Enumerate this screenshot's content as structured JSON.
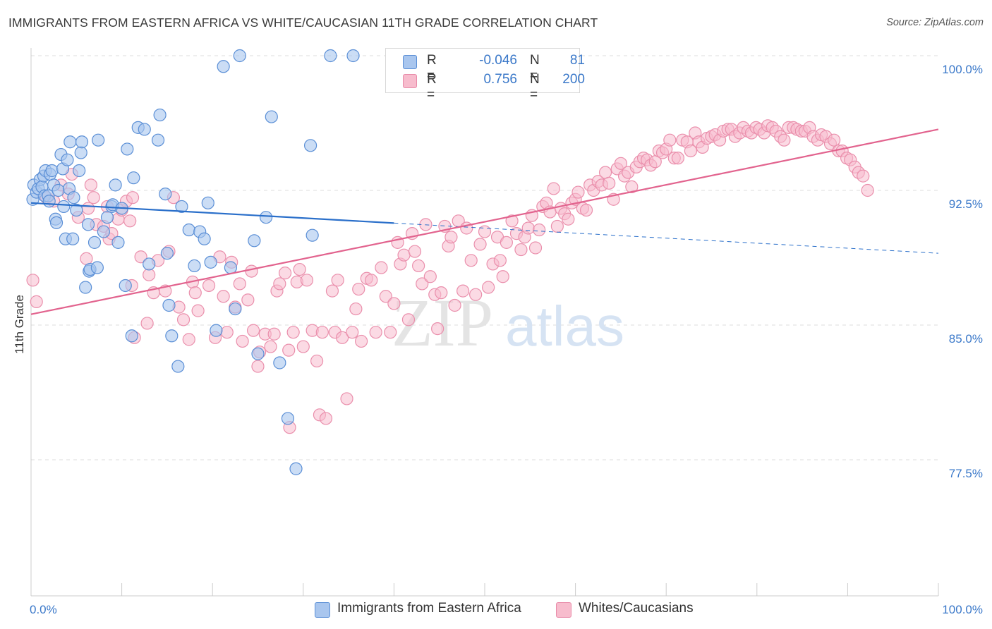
{
  "title": "IMMIGRANTS FROM EASTERN AFRICA VS WHITE/CAUCASIAN 11TH GRADE CORRELATION CHART",
  "source": "Source: ZipAtlas.com",
  "watermark": {
    "zip": "ZIP",
    "atlas": "atlas"
  },
  "legend": {
    "rows": [
      {
        "r_label": "R =",
        "r_value": "-0.046",
        "n_label": "N =",
        "n_value": "81",
        "color": "#a9c6ee",
        "border": "#5b8fd6"
      },
      {
        "r_label": "R =",
        "r_value": "0.756",
        "n_label": "N =",
        "n_value": "200",
        "color": "#f7bccd",
        "border": "#e88aa8"
      }
    ]
  },
  "bottom_legend": {
    "blue_label": "Immigrants from Eastern Africa",
    "pink_label": "Whites/Caucasians"
  },
  "colors": {
    "blue_fill": "#a9c6ee",
    "blue_stroke": "#5b8fd6",
    "blue_line": "#2a6fca",
    "pink_fill": "#f7bccd",
    "pink_stroke": "#ea8fac",
    "pink_line": "#e2638e",
    "tick_text": "#3a78c9",
    "grid": "#dddddd"
  },
  "chart_data": {
    "type": "scatter",
    "title": "IMMIGRANTS FROM EASTERN AFRICA VS WHITE/CAUCASIAN 11TH GRADE CORRELATION CHART",
    "xlabel": "",
    "ylabel": "11th Grade",
    "xlim": [
      0,
      100
    ],
    "ylim": [
      70.5,
      101.5
    ],
    "x_tick_labels": [
      "0.0%",
      "100.0%"
    ],
    "y_ticks": [
      77.5,
      85.0,
      92.5,
      100.0
    ],
    "y_tick_labels": [
      "77.5%",
      "85.0%",
      "92.5%",
      "100.0%"
    ],
    "grid": true,
    "legend_placement": "top-center",
    "series": [
      {
        "name": "Immigrants from Eastern Africa",
        "R": -0.046,
        "N": 81,
        "trend": {
          "x0": 0,
          "y0": 91.8,
          "x1": 100,
          "y1": 89.0,
          "solid_until": 40
        },
        "points": [
          [
            0.2,
            92.0
          ],
          [
            0.3,
            92.8
          ],
          [
            0.6,
            92.4
          ],
          [
            0.8,
            92.6
          ],
          [
            1.0,
            93.1
          ],
          [
            1.2,
            92.7
          ],
          [
            1.4,
            93.3
          ],
          [
            1.5,
            92.2
          ],
          [
            1.6,
            93.6
          ],
          [
            1.9,
            92.2
          ],
          [
            2.0,
            91.9
          ],
          [
            2.1,
            93.4
          ],
          [
            2.3,
            93.6
          ],
          [
            2.5,
            92.8
          ],
          [
            2.7,
            90.9
          ],
          [
            2.8,
            90.7
          ],
          [
            3.0,
            92.5
          ],
          [
            3.3,
            94.5
          ],
          [
            3.5,
            93.7
          ],
          [
            3.6,
            91.6
          ],
          [
            3.8,
            89.8
          ],
          [
            4.0,
            94.2
          ],
          [
            4.2,
            92.6
          ],
          [
            4.3,
            95.2
          ],
          [
            4.6,
            89.8
          ],
          [
            4.7,
            92.1
          ],
          [
            5.0,
            91.4
          ],
          [
            5.3,
            93.6
          ],
          [
            5.5,
            94.6
          ],
          [
            5.6,
            95.2
          ],
          [
            6.0,
            87.1
          ],
          [
            6.3,
            90.6
          ],
          [
            6.4,
            88.0
          ],
          [
            6.5,
            88.1
          ],
          [
            7.0,
            89.6
          ],
          [
            7.3,
            88.2
          ],
          [
            7.4,
            95.3
          ],
          [
            8.0,
            90.2
          ],
          [
            8.4,
            91.0
          ],
          [
            8.9,
            91.6
          ],
          [
            9.0,
            91.7
          ],
          [
            9.3,
            92.8
          ],
          [
            9.6,
            89.6
          ],
          [
            10.0,
            91.5
          ],
          [
            10.4,
            87.2
          ],
          [
            10.6,
            94.8
          ],
          [
            11.1,
            84.4
          ],
          [
            11.3,
            93.2
          ],
          [
            11.8,
            96.0
          ],
          [
            12.5,
            95.9
          ],
          [
            13.0,
            88.4
          ],
          [
            14.0,
            95.3
          ],
          [
            14.2,
            96.7
          ],
          [
            14.8,
            92.3
          ],
          [
            15.0,
            89.0
          ],
          [
            15.2,
            86.1
          ],
          [
            15.5,
            84.4
          ],
          [
            16.2,
            82.7
          ],
          [
            16.6,
            91.6
          ],
          [
            17.4,
            90.3
          ],
          [
            18.0,
            88.3
          ],
          [
            18.6,
            90.2
          ],
          [
            19.1,
            89.8
          ],
          [
            19.5,
            91.8
          ],
          [
            19.8,
            88.5
          ],
          [
            20.4,
            84.7
          ],
          [
            21.2,
            99.4
          ],
          [
            22.0,
            88.2
          ],
          [
            22.5,
            85.9
          ],
          [
            23.0,
            100.0
          ],
          [
            24.6,
            89.7
          ],
          [
            25.0,
            83.4
          ],
          [
            25.9,
            91.0
          ],
          [
            26.5,
            96.6
          ],
          [
            27.4,
            82.9
          ],
          [
            28.3,
            79.8
          ],
          [
            29.2,
            77.0
          ],
          [
            30.8,
            95.0
          ],
          [
            31.0,
            90.0
          ],
          [
            33.0,
            100.0
          ],
          [
            35.5,
            100.0
          ]
        ]
      },
      {
        "name": "Whites/Caucasians",
        "R": 0.756,
        "N": 200,
        "trend": {
          "x0": 0,
          "y0": 85.6,
          "x1": 100,
          "y1": 95.9
        },
        "points": [
          [
            0.2,
            87.5
          ],
          [
            0.6,
            86.3
          ],
          [
            1.7,
            92.1
          ],
          [
            2.5,
            91.9
          ],
          [
            3.3,
            92.8
          ],
          [
            4.1,
            92.3
          ],
          [
            4.5,
            93.4
          ],
          [
            5.2,
            91.0
          ],
          [
            6.1,
            88.7
          ],
          [
            6.3,
            91.5
          ],
          [
            6.6,
            92.8
          ],
          [
            6.9,
            92.1
          ],
          [
            7.2,
            90.6
          ],
          [
            8.0,
            90.5
          ],
          [
            8.4,
            91.6
          ],
          [
            8.6,
            89.8
          ],
          [
            8.9,
            90.1
          ],
          [
            9.6,
            90.9
          ],
          [
            10.0,
            91.4
          ],
          [
            10.5,
            91.9
          ],
          [
            10.9,
            90.8
          ],
          [
            11.1,
            87.2
          ],
          [
            11.2,
            92.1
          ],
          [
            11.4,
            84.3
          ],
          [
            12.1,
            88.8
          ],
          [
            12.8,
            85.1
          ],
          [
            13.0,
            87.8
          ],
          [
            13.5,
            86.8
          ],
          [
            14.0,
            88.6
          ],
          [
            14.8,
            86.9
          ],
          [
            15.2,
            89.1
          ],
          [
            15.7,
            92.1
          ],
          [
            16.3,
            86.0
          ],
          [
            16.8,
            85.3
          ],
          [
            17.4,
            84.2
          ],
          [
            17.8,
            87.4
          ],
          [
            18.1,
            86.8
          ],
          [
            18.4,
            85.8
          ],
          [
            19.6,
            87.2
          ],
          [
            20.3,
            84.3
          ],
          [
            20.8,
            88.8
          ],
          [
            21.2,
            86.6
          ],
          [
            21.6,
            84.6
          ],
          [
            22.1,
            88.5
          ],
          [
            22.5,
            86.0
          ],
          [
            23.0,
            87.3
          ],
          [
            23.3,
            84.1
          ],
          [
            23.9,
            86.4
          ],
          [
            24.3,
            88.0
          ],
          [
            24.5,
            84.7
          ],
          [
            25.0,
            82.7
          ],
          [
            25.2,
            83.5
          ],
          [
            25.8,
            84.5
          ],
          [
            26.4,
            83.8
          ],
          [
            26.8,
            84.5
          ],
          [
            27.1,
            86.9
          ],
          [
            27.4,
            87.3
          ],
          [
            28.0,
            87.9
          ],
          [
            28.4,
            83.6
          ],
          [
            28.5,
            79.3
          ],
          [
            28.9,
            84.6
          ],
          [
            29.3,
            87.4
          ],
          [
            29.6,
            88.1
          ],
          [
            30.0,
            83.8
          ],
          [
            30.4,
            87.5
          ],
          [
            31.0,
            84.7
          ],
          [
            31.5,
            83.0
          ],
          [
            31.8,
            80.0
          ],
          [
            32.1,
            84.6
          ],
          [
            32.5,
            79.8
          ],
          [
            33.2,
            86.9
          ],
          [
            33.5,
            84.6
          ],
          [
            33.8,
            87.5
          ],
          [
            34.3,
            84.3
          ],
          [
            34.8,
            80.9
          ],
          [
            35.4,
            84.6
          ],
          [
            35.8,
            85.9
          ],
          [
            36.1,
            87.0
          ],
          [
            36.4,
            84.1
          ],
          [
            37.0,
            87.6
          ],
          [
            37.5,
            87.5
          ],
          [
            38.0,
            84.6
          ],
          [
            38.6,
            88.2
          ],
          [
            39.1,
            86.6
          ],
          [
            39.6,
            84.6
          ],
          [
            40.0,
            86.2
          ],
          [
            40.4,
            89.6
          ],
          [
            40.7,
            88.4
          ],
          [
            41.1,
            88.9
          ],
          [
            41.6,
            85.3
          ],
          [
            42.0,
            90.1
          ],
          [
            42.3,
            89.1
          ],
          [
            42.7,
            88.3
          ],
          [
            43.1,
            87.3
          ],
          [
            43.5,
            90.6
          ],
          [
            44.0,
            87.7
          ],
          [
            44.5,
            86.7
          ],
          [
            44.8,
            84.8
          ],
          [
            45.2,
            86.8
          ],
          [
            45.6,
            90.5
          ],
          [
            46.0,
            89.4
          ],
          [
            46.3,
            89.9
          ],
          [
            46.7,
            86.1
          ],
          [
            47.1,
            90.8
          ],
          [
            47.6,
            86.9
          ],
          [
            48.0,
            90.4
          ],
          [
            48.5,
            88.6
          ],
          [
            49.0,
            86.7
          ],
          [
            49.5,
            89.5
          ],
          [
            50.0,
            90.2
          ],
          [
            50.4,
            87.1
          ],
          [
            50.9,
            88.4
          ],
          [
            51.4,
            89.9
          ],
          [
            51.7,
            88.6
          ],
          [
            52.0,
            87.7
          ],
          [
            52.4,
            89.6
          ],
          [
            53.0,
            90.8
          ],
          [
            53.5,
            90.1
          ],
          [
            54.0,
            89.2
          ],
          [
            54.4,
            89.9
          ],
          [
            54.8,
            90.4
          ],
          [
            55.2,
            91.1
          ],
          [
            55.6,
            89.3
          ],
          [
            56.0,
            90.3
          ],
          [
            56.4,
            91.6
          ],
          [
            56.8,
            91.8
          ],
          [
            57.2,
            91.3
          ],
          [
            57.6,
            92.6
          ],
          [
            58.0,
            90.5
          ],
          [
            58.4,
            91.5
          ],
          [
            58.8,
            91.2
          ],
          [
            59.2,
            90.9
          ],
          [
            59.6,
            91.8
          ],
          [
            60.0,
            92.0
          ],
          [
            60.3,
            92.4
          ],
          [
            60.8,
            91.5
          ],
          [
            61.2,
            91.4
          ],
          [
            61.6,
            92.8
          ],
          [
            62.0,
            92.5
          ],
          [
            62.5,
            93.0
          ],
          [
            62.9,
            92.8
          ],
          [
            63.3,
            93.5
          ],
          [
            63.7,
            92.9
          ],
          [
            64.2,
            92.0
          ],
          [
            64.6,
            93.7
          ],
          [
            65.0,
            94.0
          ],
          [
            65.4,
            93.3
          ],
          [
            65.8,
            93.5
          ],
          [
            66.2,
            92.7
          ],
          [
            66.7,
            93.8
          ],
          [
            67.1,
            94.1
          ],
          [
            67.5,
            94.3
          ],
          [
            67.9,
            94.2
          ],
          [
            68.3,
            93.9
          ],
          [
            68.8,
            94.1
          ],
          [
            69.2,
            94.7
          ],
          [
            69.6,
            94.6
          ],
          [
            70.0,
            94.8
          ],
          [
            70.4,
            95.3
          ],
          [
            70.9,
            94.3
          ],
          [
            71.3,
            94.3
          ],
          [
            71.8,
            95.3
          ],
          [
            72.3,
            95.2
          ],
          [
            72.7,
            94.7
          ],
          [
            73.2,
            95.7
          ],
          [
            73.6,
            95.2
          ],
          [
            74.0,
            94.9
          ],
          [
            74.5,
            95.4
          ],
          [
            75.0,
            95.5
          ],
          [
            75.4,
            95.6
          ],
          [
            75.9,
            95.3
          ],
          [
            76.3,
            95.8
          ],
          [
            76.8,
            95.9
          ],
          [
            77.2,
            95.9
          ],
          [
            77.6,
            95.5
          ],
          [
            78.1,
            95.7
          ],
          [
            78.5,
            96.0
          ],
          [
            79.0,
            95.8
          ],
          [
            79.4,
            95.7
          ],
          [
            79.9,
            96.0
          ],
          [
            80.3,
            95.9
          ],
          [
            80.8,
            95.7
          ],
          [
            81.2,
            96.1
          ],
          [
            81.7,
            96.0
          ],
          [
            82.1,
            95.8
          ],
          [
            82.6,
            95.5
          ],
          [
            83.0,
            95.3
          ],
          [
            83.5,
            96.0
          ],
          [
            84.0,
            96.0
          ],
          [
            84.4,
            95.9
          ],
          [
            84.9,
            95.8
          ],
          [
            85.3,
            95.8
          ],
          [
            85.8,
            96.0
          ],
          [
            86.2,
            95.5
          ],
          [
            86.7,
            95.3
          ],
          [
            87.1,
            95.6
          ],
          [
            87.6,
            95.5
          ],
          [
            88.1,
            95.1
          ],
          [
            88.5,
            95.3
          ],
          [
            89.0,
            94.7
          ],
          [
            89.4,
            94.7
          ],
          [
            89.9,
            94.3
          ],
          [
            90.3,
            94.2
          ],
          [
            90.8,
            93.8
          ],
          [
            91.2,
            93.5
          ],
          [
            91.7,
            93.3
          ],
          [
            92.2,
            92.5
          ]
        ]
      }
    ]
  }
}
